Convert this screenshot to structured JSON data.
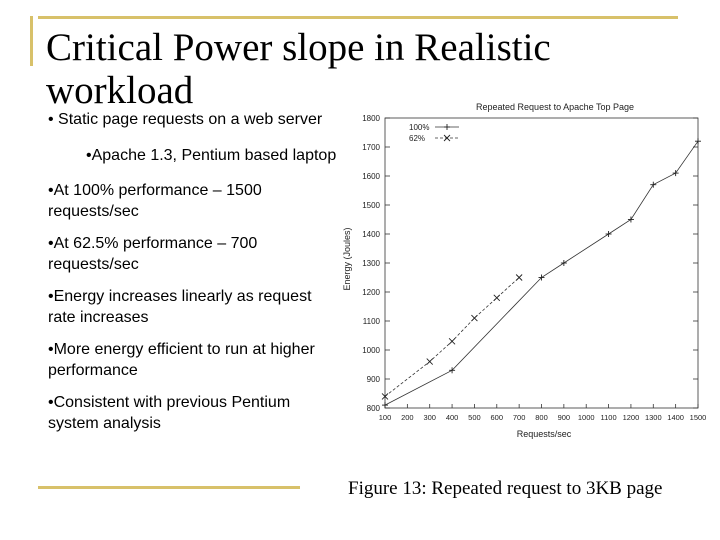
{
  "slide": {
    "title": "Critical Power slope in Realistic workload",
    "bullets": [
      {
        "text": "• Static page requests on a web server",
        "level": 1
      },
      {
        "text": "•Apache 1.3, Pentium based laptop",
        "level": 2
      },
      {
        "text": "•At 100% performance – 1500 requests/sec",
        "level": 1
      },
      {
        "text": "•At 62.5% performance – 700 requests/sec",
        "level": 1
      },
      {
        "text": "•Energy increases linearly as request rate increases",
        "level": 1
      },
      {
        "text": "•More energy efficient to run at higher performance",
        "level": 1
      },
      {
        "text": "•Consistent with previous Pentium system analysis",
        "level": 1
      }
    ],
    "caption": "Figure 13: Repeated request to 3KB page",
    "accent_color": "#d8c16a"
  },
  "chart_data": {
    "type": "line",
    "title": "Repeated Request to Apache Top Page",
    "xlabel": "Requests/sec",
    "ylabel": "Energy (Joules)",
    "xlim": [
      100,
      1500
    ],
    "ylim": [
      800,
      1800
    ],
    "x_ticks": [
      100,
      200,
      300,
      400,
      500,
      600,
      700,
      800,
      900,
      1000,
      1100,
      1200,
      1300,
      1400,
      1500
    ],
    "y_ticks": [
      800,
      900,
      1000,
      1100,
      1200,
      1300,
      1400,
      1500,
      1600,
      1700,
      1800
    ],
    "legend_position": "top-left",
    "series": [
      {
        "name": "100%",
        "marker": "+",
        "dash": "solid",
        "x": [
          100,
          400,
          800,
          900,
          1100,
          1200,
          1300,
          1400,
          1500
        ],
        "y": [
          810,
          930,
          1250,
          1300,
          1400,
          1450,
          1570,
          1610,
          1720
        ]
      },
      {
        "name": "62%",
        "marker": "x",
        "dash": "dashed",
        "x": [
          100,
          300,
          400,
          500,
          600,
          700
        ],
        "y": [
          840,
          960,
          1030,
          1110,
          1180,
          1250
        ]
      }
    ]
  }
}
